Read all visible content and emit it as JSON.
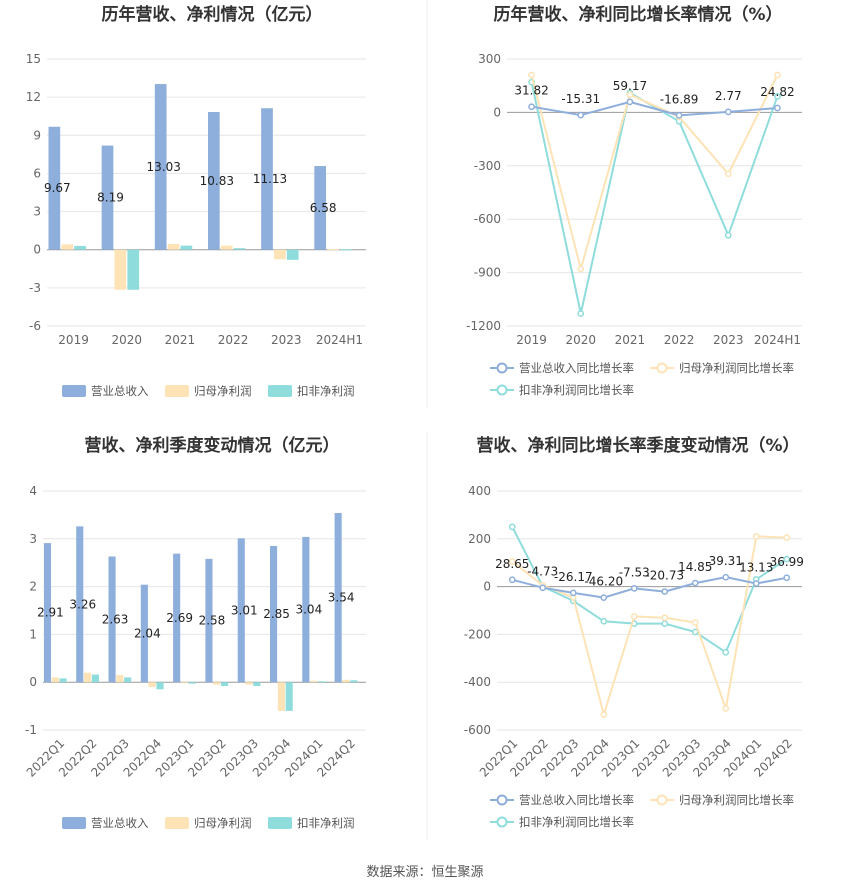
{
  "source": "数据来源：恒生聚源",
  "colors": {
    "revenue_bar": "#8eaedc",
    "parent_bar": "#fde3b5",
    "nonrec_bar": "#8fdcdc",
    "revenue_line": "#8eaedc",
    "parent_line": "#fde3b5",
    "nonrec_line": "#8fdcdc",
    "grid": "#e6e6e6",
    "axis": "#bbbbbb"
  },
  "chart_data": [
    {
      "id": "annual-bar",
      "type": "bar",
      "title": "历年营收、净利情况（亿元）",
      "categories": [
        "2019",
        "2020",
        "2021",
        "2022",
        "2023",
        "2024H1"
      ],
      "yticks": [
        15,
        12,
        9,
        6,
        3,
        0,
        -3,
        -6
      ],
      "ylim": [
        -6,
        15
      ],
      "grid": true,
      "legend_position": "bottom",
      "series": [
        {
          "name": "营业总收入",
          "values": [
            9.67,
            8.19,
            13.03,
            10.83,
            11.13,
            6.58
          ],
          "labels": [
            "9.67",
            "8.19",
            "13.03",
            "10.83",
            "11.13",
            "6.58"
          ]
        },
        {
          "name": "归母净利润",
          "values": [
            0.42,
            -3.15,
            0.45,
            0.32,
            -0.75,
            0.05
          ]
        },
        {
          "name": "扣非净利润",
          "values": [
            0.3,
            -3.15,
            0.32,
            0.12,
            -0.8,
            0.03
          ]
        }
      ]
    },
    {
      "id": "annual-line",
      "type": "line",
      "title": "历年营收、净利同比增长率情况（%）",
      "categories": [
        "2019",
        "2020",
        "2021",
        "2022",
        "2023",
        "2024H1"
      ],
      "yticks": [
        300,
        0,
        -300,
        -600,
        -900,
        -1200
      ],
      "ylim": [
        -1200,
        300
      ],
      "grid": true,
      "legend_position": "bottom",
      "series": [
        {
          "name": "营业总收入同比增长率",
          "values": [
            31.82,
            -15.31,
            59.17,
            -16.89,
            2.77,
            24.82
          ],
          "labels": [
            "31.82",
            "-15.31",
            "59.17",
            "-16.89",
            "2.77",
            "24.82"
          ]
        },
        {
          "name": "归母净利润同比增长率",
          "values": [
            210,
            -880,
            100,
            -25,
            -345,
            210
          ]
        },
        {
          "name": "扣非净利润同比增长率",
          "values": [
            170,
            -1130,
            110,
            -50,
            -690,
            90
          ]
        }
      ]
    },
    {
      "id": "quarter-bar",
      "type": "bar",
      "title": "营收、净利季度变动情况（亿元）",
      "categories": [
        "2022Q1",
        "2022Q2",
        "2022Q3",
        "2022Q4",
        "2023Q1",
        "2023Q2",
        "2023Q3",
        "2023Q4",
        "2024Q1",
        "2024Q2"
      ],
      "yticks": [
        4,
        3,
        2,
        1,
        0,
        -1
      ],
      "ylim": [
        -1,
        4
      ],
      "grid": true,
      "legend_position": "bottom",
      "series": [
        {
          "name": "营业总收入",
          "values": [
            2.91,
            3.26,
            2.63,
            2.04,
            2.69,
            2.58,
            3.01,
            2.85,
            3.04,
            3.54
          ],
          "labels": [
            "2.91",
            "3.26",
            "2.63",
            "2.04",
            "2.69",
            "2.58",
            "3.01",
            "2.85",
            "3.04",
            "3.54"
          ]
        },
        {
          "name": "归母净利润",
          "values": [
            0.1,
            0.2,
            0.15,
            -0.1,
            -0.02,
            -0.05,
            -0.05,
            -0.6,
            0.03,
            0.05
          ]
        },
        {
          "name": "扣非净利润",
          "values": [
            0.08,
            0.16,
            0.1,
            -0.15,
            -0.03,
            -0.08,
            -0.08,
            -0.6,
            0.02,
            0.04
          ]
        }
      ]
    },
    {
      "id": "quarter-line",
      "type": "line",
      "title": "营收、净利同比增长率季度变动情况（%）",
      "categories": [
        "2022Q1",
        "2022Q2",
        "2022Q3",
        "2022Q4",
        "2023Q1",
        "2023Q2",
        "2023Q3",
        "2023Q4",
        "2024Q1",
        "2024Q2"
      ],
      "yticks": [
        400,
        200,
        0,
        -200,
        -400,
        -600
      ],
      "ylim": [
        -600,
        400
      ],
      "grid": true,
      "legend_position": "bottom",
      "series": [
        {
          "name": "营业总收入同比增长率",
          "values": [
            28.65,
            -4.73,
            -26.17,
            -46.2,
            -7.53,
            -20.73,
            14.85,
            39.31,
            13.13,
            36.99
          ],
          "labels": [
            "28.65",
            "-4.73",
            "-26.17",
            "-46.20",
            "-7.53",
            "-20.73",
            "14.85",
            "39.31",
            "13.13",
            "36.99"
          ]
        },
        {
          "name": "归母净利润同比增长率",
          "values": [
            105,
            5,
            -45,
            -535,
            -125,
            -130,
            -150,
            -510,
            210,
            205
          ]
        },
        {
          "name": "扣非净利润同比增长率",
          "values": [
            250,
            0,
            -60,
            -145,
            -155,
            -155,
            -190,
            -275,
            30,
            115
          ]
        }
      ]
    }
  ]
}
